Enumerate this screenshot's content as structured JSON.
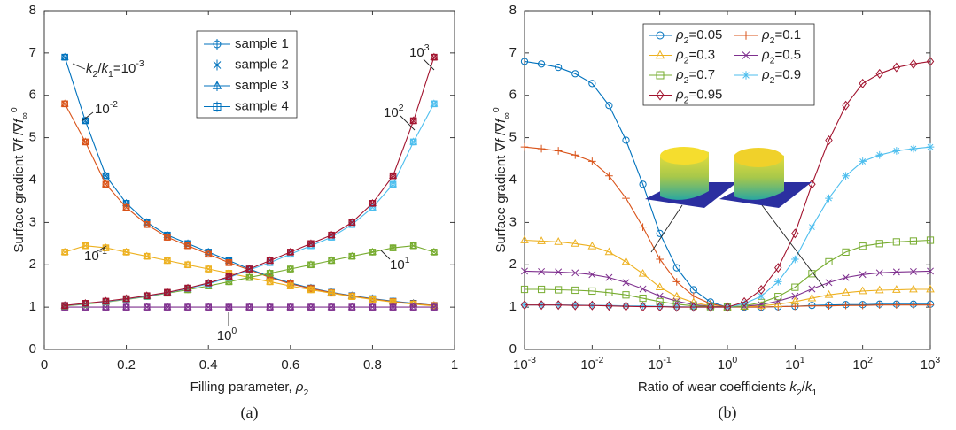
{
  "chart_data": [
    {
      "type": "line",
      "caption": "(a)",
      "x_label": [
        [
          "Filling parameter, ",
          ""
        ],
        [
          "ρ",
          "i"
        ],
        [
          "2",
          "sub"
        ]
      ],
      "y_label": [
        [
          "Surface gradient  ∇",
          ""
        ],
        [
          "f",
          "i"
        ],
        [
          " /∇",
          ""
        ],
        [
          "f",
          "i"
        ],
        [
          "∞",
          "sub"
        ],
        [
          "0",
          "sup"
        ]
      ],
      "xlim": [
        0,
        1
      ],
      "ylim": [
        0,
        8
      ],
      "xticks": [
        0,
        0.2,
        0.4,
        0.6,
        0.8,
        1
      ],
      "yticks": [
        0,
        1,
        2,
        3,
        4,
        5,
        6,
        7,
        8
      ],
      "legend": [
        {
          "name": "sample 1",
          "marker": "circle"
        },
        {
          "name": "sample 2",
          "marker": "x"
        },
        {
          "name": "sample 3",
          "marker": "triangle"
        },
        {
          "name": "sample 4",
          "marker": "square"
        }
      ],
      "legend_color": "#0072BD",
      "x": [
        0.05,
        0.1,
        0.15,
        0.2,
        0.25,
        0.3,
        0.35,
        0.4,
        0.45,
        0.5,
        0.55,
        0.6,
        0.65,
        0.7,
        0.75,
        0.8,
        0.85,
        0.9,
        0.95
      ],
      "series": [
        {
          "annotation": [
            [
              "k",
              "i"
            ],
            [
              "2",
              "sub"
            ],
            [
              "/",
              ""
            ],
            [
              "k",
              "i"
            ],
            [
              "1",
              "sub"
            ],
            [
              "=10",
              ""
            ],
            [
              "-3",
              "sup"
            ]
          ],
          "color": "#0072BD",
          "values": [
            6.9,
            5.4,
            4.1,
            3.45,
            3.0,
            2.7,
            2.5,
            2.3,
            2.1,
            1.9,
            1.72,
            1.57,
            1.45,
            1.35,
            1.27,
            1.2,
            1.14,
            1.09,
            1.04
          ]
        },
        {
          "annotation": [
            [
              "10",
              ""
            ],
            [
              "-2",
              "sup"
            ]
          ],
          "color": "#D95319",
          "values": [
            5.8,
            4.9,
            3.9,
            3.35,
            2.95,
            2.65,
            2.45,
            2.25,
            2.05,
            1.88,
            1.7,
            1.55,
            1.44,
            1.34,
            1.26,
            1.19,
            1.13,
            1.08,
            1.04
          ]
        },
        {
          "annotation": [
            [
              "10",
              ""
            ],
            [
              "-1",
              "sup"
            ]
          ],
          "color": "#EDB120",
          "values": [
            2.3,
            2.45,
            2.4,
            2.3,
            2.2,
            2.1,
            2.0,
            1.9,
            1.8,
            1.7,
            1.6,
            1.5,
            1.41,
            1.33,
            1.25,
            1.18,
            1.12,
            1.07,
            1.03
          ]
        },
        {
          "annotation": [
            [
              "10",
              ""
            ],
            [
              "0",
              "sup"
            ]
          ],
          "color": "#7E2F8E",
          "values": [
            1,
            1,
            1,
            1,
            1,
            1,
            1,
            1,
            1,
            1,
            1,
            1,
            1,
            1,
            1,
            1,
            1,
            1,
            1
          ]
        },
        {
          "annotation": [
            [
              "10",
              ""
            ],
            [
              "1",
              "sup"
            ]
          ],
          "color": "#77AC30",
          "values": [
            1.03,
            1.07,
            1.12,
            1.18,
            1.25,
            1.33,
            1.41,
            1.5,
            1.6,
            1.7,
            1.8,
            1.9,
            2.0,
            2.1,
            2.2,
            2.3,
            2.4,
            2.45,
            2.3
          ]
        },
        {
          "annotation": [
            [
              "10",
              ""
            ],
            [
              "2",
              "sup"
            ]
          ],
          "color": "#4DBEEE",
          "values": [
            1.04,
            1.08,
            1.13,
            1.19,
            1.26,
            1.34,
            1.44,
            1.55,
            1.7,
            1.88,
            2.05,
            2.25,
            2.45,
            2.65,
            2.95,
            3.35,
            3.9,
            4.9,
            5.8
          ]
        },
        {
          "annotation": [
            [
              "10",
              ""
            ],
            [
              "3",
              "sup"
            ]
          ],
          "color": "#A2142F",
          "values": [
            1.04,
            1.09,
            1.14,
            1.2,
            1.27,
            1.35,
            1.45,
            1.57,
            1.72,
            1.9,
            2.1,
            2.3,
            2.5,
            2.7,
            3.0,
            3.45,
            4.1,
            5.4,
            6.9
          ]
        }
      ]
    },
    {
      "type": "line",
      "caption": "(b)",
      "x_label": [
        [
          "Ratio of wear coefficients ",
          ""
        ],
        [
          "k",
          "i"
        ],
        [
          "2",
          "sub"
        ],
        [
          "/",
          ""
        ],
        [
          "k",
          "i"
        ],
        [
          "1",
          "sub"
        ]
      ],
      "y_label": [
        [
          "Surface gradient  ∇",
          ""
        ],
        [
          "f",
          "i"
        ],
        [
          " /∇",
          ""
        ],
        [
          "f",
          "i"
        ],
        [
          "∞",
          "sub"
        ],
        [
          "0",
          "sup"
        ]
      ],
      "xscale": "log",
      "xlim": [
        0.001,
        1000
      ],
      "ylim": [
        0,
        8
      ],
      "xticks": [
        {
          "value": 0.001,
          "label": "10",
          "exponent": "-3"
        },
        {
          "value": 0.01,
          "label": "10",
          "exponent": "-2"
        },
        {
          "value": 0.1,
          "label": "10",
          "exponent": "-1"
        },
        {
          "value": 1,
          "label": "10",
          "exponent": "0"
        },
        {
          "value": 10,
          "label": "10",
          "exponent": "1"
        },
        {
          "value": 100,
          "label": "10",
          "exponent": "2"
        },
        {
          "value": 1000,
          "label": "10",
          "exponent": "3"
        }
      ],
      "yticks": [
        0,
        1,
        2,
        3,
        4,
        5,
        6,
        7,
        8
      ],
      "x": [
        0.001,
        0.001778,
        0.003162,
        0.005623,
        0.01,
        0.01778,
        0.03162,
        0.05623,
        0.1,
        0.1778,
        0.3162,
        0.5623,
        1,
        1.778,
        3.162,
        5.623,
        10,
        17.78,
        31.62,
        56.23,
        100,
        177.8,
        316.2,
        562.3,
        1000
      ],
      "series": [
        {
          "name": [
            [
              "ρ",
              "i"
            ],
            [
              "2",
              "sub"
            ],
            [
              "=0.05",
              ""
            ]
          ],
          "color": "#0072BD",
          "marker": "circle",
          "values": [
            6.8,
            6.74,
            6.66,
            6.51,
            6.28,
            5.76,
            4.94,
            3.9,
            2.74,
            1.93,
            1.41,
            1.12,
            1.0,
            1.0,
            1.0,
            1.01,
            1.02,
            1.04,
            1.05,
            1.06,
            1.06,
            1.07,
            1.07,
            1.07,
            1.07
          ]
        },
        {
          "name": [
            [
              "ρ",
              "i"
            ],
            [
              "2",
              "sub"
            ],
            [
              "=0.1",
              ""
            ]
          ],
          "color": "#D95319",
          "marker": "plus",
          "values": [
            4.78,
            4.74,
            4.69,
            4.59,
            4.44,
            4.1,
            3.57,
            2.89,
            2.13,
            1.6,
            1.26,
            1.08,
            1.0,
            1.0,
            1.0,
            1.01,
            1.02,
            1.03,
            1.03,
            1.04,
            1.04,
            1.05,
            1.05,
            1.05,
            1.05
          ]
        },
        {
          "name": [
            [
              "ρ",
              "i"
            ],
            [
              "2",
              "sub"
            ],
            [
              "=0.3",
              ""
            ]
          ],
          "color": "#EDB120",
          "marker": "triangle",
          "values": [
            2.58,
            2.56,
            2.54,
            2.5,
            2.44,
            2.3,
            2.07,
            1.79,
            1.47,
            1.25,
            1.11,
            1.03,
            1.0,
            1.01,
            1.03,
            1.07,
            1.13,
            1.21,
            1.29,
            1.34,
            1.38,
            1.4,
            1.41,
            1.42,
            1.42
          ]
        },
        {
          "name": [
            [
              "ρ",
              "i"
            ],
            [
              "2",
              "sub"
            ],
            [
              "=0.5",
              ""
            ]
          ],
          "color": "#7E2F8E",
          "marker": "x",
          "values": [
            1.85,
            1.84,
            1.83,
            1.81,
            1.77,
            1.7,
            1.58,
            1.43,
            1.26,
            1.14,
            1.06,
            1.02,
            1.0,
            1.02,
            1.06,
            1.14,
            1.26,
            1.43,
            1.58,
            1.7,
            1.77,
            1.81,
            1.83,
            1.84,
            1.85
          ]
        },
        {
          "name": [
            [
              "ρ",
              "i"
            ],
            [
              "2",
              "sub"
            ],
            [
              "=0.7",
              ""
            ]
          ],
          "color": "#77AC30",
          "marker": "square",
          "values": [
            1.42,
            1.42,
            1.41,
            1.4,
            1.38,
            1.34,
            1.29,
            1.21,
            1.13,
            1.07,
            1.03,
            1.01,
            1.0,
            1.03,
            1.11,
            1.25,
            1.47,
            1.79,
            2.07,
            2.3,
            2.44,
            2.5,
            2.54,
            2.56,
            2.58
          ]
        },
        {
          "name": [
            [
              "ρ",
              "i"
            ],
            [
              "2",
              "sub"
            ],
            [
              "=0.9",
              ""
            ]
          ],
          "color": "#4DBEEE",
          "marker": "asterisk",
          "values": [
            1.05,
            1.05,
            1.05,
            1.05,
            1.04,
            1.04,
            1.03,
            1.03,
            1.02,
            1.01,
            1.0,
            1.0,
            1.0,
            1.08,
            1.26,
            1.6,
            2.13,
            2.89,
            3.57,
            4.1,
            4.44,
            4.59,
            4.69,
            4.74,
            4.78
          ]
        },
        {
          "name": [
            [
              "ρ",
              "i"
            ],
            [
              "2",
              "sub"
            ],
            [
              "=0.95",
              ""
            ]
          ],
          "color": "#A2142F",
          "marker": "diamond",
          "values": [
            1.05,
            1.05,
            1.05,
            1.04,
            1.04,
            1.03,
            1.02,
            1.01,
            1.01,
            1.0,
            1.0,
            1.0,
            1.0,
            1.12,
            1.41,
            1.93,
            2.74,
            3.9,
            4.94,
            5.76,
            6.28,
            6.51,
            6.66,
            6.74,
            6.8
          ]
        }
      ]
    }
  ]
}
